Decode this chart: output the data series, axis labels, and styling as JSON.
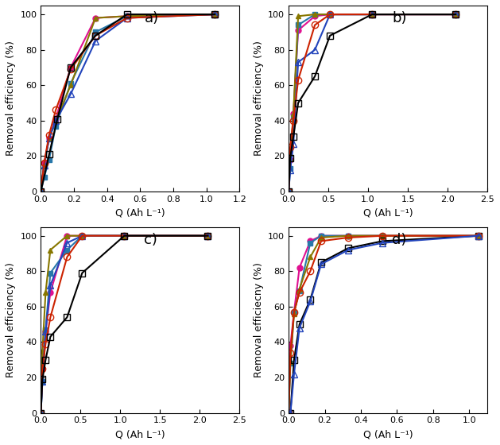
{
  "panels": {
    "a": {
      "xlim": [
        0,
        1.2
      ],
      "xticks": [
        0.0,
        0.2,
        0.4,
        0.6,
        0.8,
        1.0,
        1.2
      ],
      "xlabel": "Q (Ah L⁻¹)",
      "ylabel": "Removal efficiency (%)",
      "label": "a)",
      "series": [
        {
          "x": [
            0,
            0.02,
            0.05,
            0.09,
            0.18,
            0.33,
            0.52,
            1.05
          ],
          "y": [
            0,
            16,
            30,
            41,
            70,
            98,
            99,
            100
          ],
          "color": "#e01090",
          "marker": "o",
          "fillstyle": "full",
          "markersize": 5,
          "linewidth": 1.5
        },
        {
          "x": [
            0,
            0.02,
            0.05,
            0.09,
            0.18,
            0.33,
            0.52,
            1.05
          ],
          "y": [
            0,
            8,
            18,
            37,
            61,
            90,
            99,
            100
          ],
          "color": "#2878aa",
          "marker": "s",
          "fillstyle": "full",
          "markersize": 5,
          "linewidth": 1.5
        },
        {
          "x": [
            0,
            0.02,
            0.05,
            0.09,
            0.18,
            0.33,
            0.52,
            1.05
          ],
          "y": [
            0,
            15,
            30,
            40,
            60,
            98,
            99,
            100
          ],
          "color": "#887700",
          "marker": "^",
          "fillstyle": "full",
          "markersize": 5,
          "linewidth": 1.5
        },
        {
          "x": [
            0,
            0.02,
            0.05,
            0.09,
            0.18,
            0.33,
            0.52,
            1.05
          ],
          "y": [
            0,
            15,
            30,
            40,
            55,
            85,
            98,
            100
          ],
          "color": "#2244bb",
          "marker": "^",
          "fillstyle": "none",
          "markersize": 6,
          "linewidth": 1.5
        },
        {
          "x": [
            0,
            0.02,
            0.05,
            0.09,
            0.18,
            0.33,
            0.52,
            1.05
          ],
          "y": [
            0,
            16,
            32,
            46,
            69,
            88,
            98,
            100
          ],
          "color": "#cc2200",
          "marker": "o",
          "fillstyle": "none",
          "markersize": 6,
          "linewidth": 1.5
        },
        {
          "x": [
            0,
            0.05,
            0.1,
            0.18,
            0.33,
            0.52,
            1.05
          ],
          "y": [
            0,
            21,
            41,
            70,
            88,
            100,
            100
          ],
          "color": "#000000",
          "marker": "s",
          "fillstyle": "none",
          "markersize": 6,
          "linewidth": 1.5
        }
      ]
    },
    "b": {
      "xlim": [
        0,
        2.5
      ],
      "xticks": [
        0.0,
        0.5,
        1.0,
        1.5,
        2.0,
        2.5
      ],
      "xlabel": "Q (Ah L⁻¹)",
      "ylabel": "Removal efficiency (%)",
      "label": "b)",
      "series": [
        {
          "x": [
            0,
            0.02,
            0.06,
            0.12,
            0.33,
            0.52,
            1.05,
            2.1
          ],
          "y": [
            0,
            18,
            44,
            91,
            99,
            100,
            100,
            100
          ],
          "color": "#e01090",
          "marker": "o",
          "fillstyle": "full",
          "markersize": 5,
          "linewidth": 1.5
        },
        {
          "x": [
            0,
            0.02,
            0.06,
            0.12,
            0.33,
            0.52,
            1.05,
            2.1
          ],
          "y": [
            0,
            13,
            42,
            94,
            100,
            100,
            100,
            100
          ],
          "color": "#2878aa",
          "marker": "s",
          "fillstyle": "full",
          "markersize": 5,
          "linewidth": 1.5
        },
        {
          "x": [
            0,
            0.02,
            0.06,
            0.12,
            0.33,
            0.52,
            1.05,
            2.1
          ],
          "y": [
            0,
            19,
            44,
            99,
            100,
            100,
            100,
            100
          ],
          "color": "#887700",
          "marker": "^",
          "fillstyle": "full",
          "markersize": 5,
          "linewidth": 1.5
        },
        {
          "x": [
            0,
            0.02,
            0.06,
            0.12,
            0.33,
            0.52,
            1.05,
            2.1
          ],
          "y": [
            0,
            12,
            27,
            73,
            80,
            100,
            100,
            100
          ],
          "color": "#2244bb",
          "marker": "^",
          "fillstyle": "none",
          "markersize": 6,
          "linewidth": 1.5
        },
        {
          "x": [
            0,
            0.02,
            0.06,
            0.12,
            0.33,
            0.52,
            1.05,
            2.1
          ],
          "y": [
            0,
            25,
            40,
            63,
            94,
            100,
            100,
            100
          ],
          "color": "#cc2200",
          "marker": "o",
          "fillstyle": "none",
          "markersize": 6,
          "linewidth": 1.5
        },
        {
          "x": [
            0,
            0.02,
            0.06,
            0.12,
            0.33,
            0.52,
            1.05,
            2.1
          ],
          "y": [
            0,
            19,
            31,
            50,
            65,
            88,
            100,
            100
          ],
          "color": "#000000",
          "marker": "s",
          "fillstyle": "none",
          "markersize": 6,
          "linewidth": 1.5
        }
      ]
    },
    "c": {
      "xlim": [
        0,
        2.5
      ],
      "xticks": [
        0.0,
        0.5,
        1.0,
        1.5,
        2.0,
        2.5
      ],
      "xlabel": "Q (Ah L⁻¹)",
      "ylabel": "Removal efficiency (%)",
      "label": "c)",
      "series": [
        {
          "x": [
            0,
            0.02,
            0.06,
            0.12,
            0.33,
            0.52,
            1.05,
            2.1
          ],
          "y": [
            0,
            25,
            46,
            68,
            100,
            100,
            100,
            100
          ],
          "color": "#e01090",
          "marker": "o",
          "fillstyle": "full",
          "markersize": 5,
          "linewidth": 1.5
        },
        {
          "x": [
            0,
            0.02,
            0.06,
            0.12,
            0.33,
            0.52,
            1.05,
            2.1
          ],
          "y": [
            0,
            18,
            47,
            79,
            92,
            100,
            100,
            100
          ],
          "color": "#2878aa",
          "marker": "s",
          "fillstyle": "full",
          "markersize": 5,
          "linewidth": 1.5
        },
        {
          "x": [
            0,
            0.02,
            0.06,
            0.12,
            0.33,
            0.52,
            1.05,
            2.1
          ],
          "y": [
            0,
            35,
            68,
            92,
            100,
            100,
            100,
            100
          ],
          "color": "#887700",
          "marker": "^",
          "fillstyle": "full",
          "markersize": 5,
          "linewidth": 1.5
        },
        {
          "x": [
            0,
            0.02,
            0.06,
            0.12,
            0.33,
            0.52,
            1.05,
            2.1
          ],
          "y": [
            0,
            18,
            46,
            72,
            96,
            100,
            100,
            100
          ],
          "color": "#2244bb",
          "marker": "^",
          "fillstyle": "none",
          "markersize": 6,
          "linewidth": 1.5
        },
        {
          "x": [
            0,
            0.02,
            0.06,
            0.12,
            0.33,
            0.52,
            1.05,
            2.1
          ],
          "y": [
            0,
            25,
            39,
            54,
            88,
            100,
            100,
            100
          ],
          "color": "#cc2200",
          "marker": "o",
          "fillstyle": "none",
          "markersize": 6,
          "linewidth": 1.5
        },
        {
          "x": [
            0,
            0.02,
            0.06,
            0.12,
            0.33,
            0.52,
            1.05,
            2.1
          ],
          "y": [
            0,
            19,
            30,
            43,
            54,
            79,
            100,
            100
          ],
          "color": "#000000",
          "marker": "s",
          "fillstyle": "none",
          "markersize": 6,
          "linewidth": 1.5
        }
      ]
    },
    "d": {
      "xlim": [
        0,
        1.1
      ],
      "xticks": [
        0.0,
        0.2,
        0.4,
        0.6,
        0.8,
        1.0
      ],
      "xlabel": "Q (Ah L⁻¹)",
      "ylabel": "Removal efficiecny (%)",
      "label": "d)",
      "series": [
        {
          "x": [
            0,
            0.01,
            0.03,
            0.06,
            0.12,
            0.18,
            0.33,
            0.52,
            1.05
          ],
          "y": [
            0,
            38,
            57,
            82,
            97,
            100,
            100,
            100,
            100
          ],
          "color": "#e01090",
          "marker": "o",
          "fillstyle": "full",
          "markersize": 5,
          "linewidth": 1.5
        },
        {
          "x": [
            0,
            0.01,
            0.03,
            0.06,
            0.12,
            0.18,
            0.33,
            0.52,
            1.05
          ],
          "y": [
            0,
            28,
            57,
            69,
            96,
            100,
            100,
            100,
            100
          ],
          "color": "#2878aa",
          "marker": "s",
          "fillstyle": "full",
          "markersize": 5,
          "linewidth": 1.5
        },
        {
          "x": [
            0,
            0.01,
            0.03,
            0.06,
            0.12,
            0.18,
            0.33,
            0.52,
            1.05
          ],
          "y": [
            0,
            29,
            56,
            70,
            88,
            99,
            100,
            100,
            100
          ],
          "color": "#887700",
          "marker": "^",
          "fillstyle": "full",
          "markersize": 5,
          "linewidth": 1.5
        },
        {
          "x": [
            0,
            0.01,
            0.03,
            0.06,
            0.12,
            0.18,
            0.33,
            0.52,
            1.05
          ],
          "y": [
            0,
            0,
            30,
            50,
            64,
            85,
            93,
            97,
            100
          ],
          "color": "#000000",
          "marker": "s",
          "fillstyle": "none",
          "markersize": 6,
          "linewidth": 1.5
        },
        {
          "x": [
            0,
            0.01,
            0.03,
            0.06,
            0.12,
            0.18,
            0.33,
            0.52,
            1.05
          ],
          "y": [
            0,
            34,
            57,
            68,
            80,
            97,
            99,
            100,
            100
          ],
          "color": "#cc2200",
          "marker": "o",
          "fillstyle": "none",
          "markersize": 6,
          "linewidth": 1.5
        },
        {
          "x": [
            0,
            0.01,
            0.03,
            0.06,
            0.12,
            0.18,
            0.33,
            0.52,
            1.05
          ],
          "y": [
            0,
            0,
            22,
            48,
            63,
            84,
            92,
            96,
            100
          ],
          "color": "#2244bb",
          "marker": "^",
          "fillstyle": "none",
          "markersize": 6,
          "linewidth": 1.5
        }
      ]
    }
  },
  "ylim": [
    0,
    105
  ],
  "yticks": [
    0,
    20,
    40,
    60,
    80,
    100
  ],
  "background_color": "#ffffff",
  "fig_width": 6.29,
  "fig_height": 5.6
}
